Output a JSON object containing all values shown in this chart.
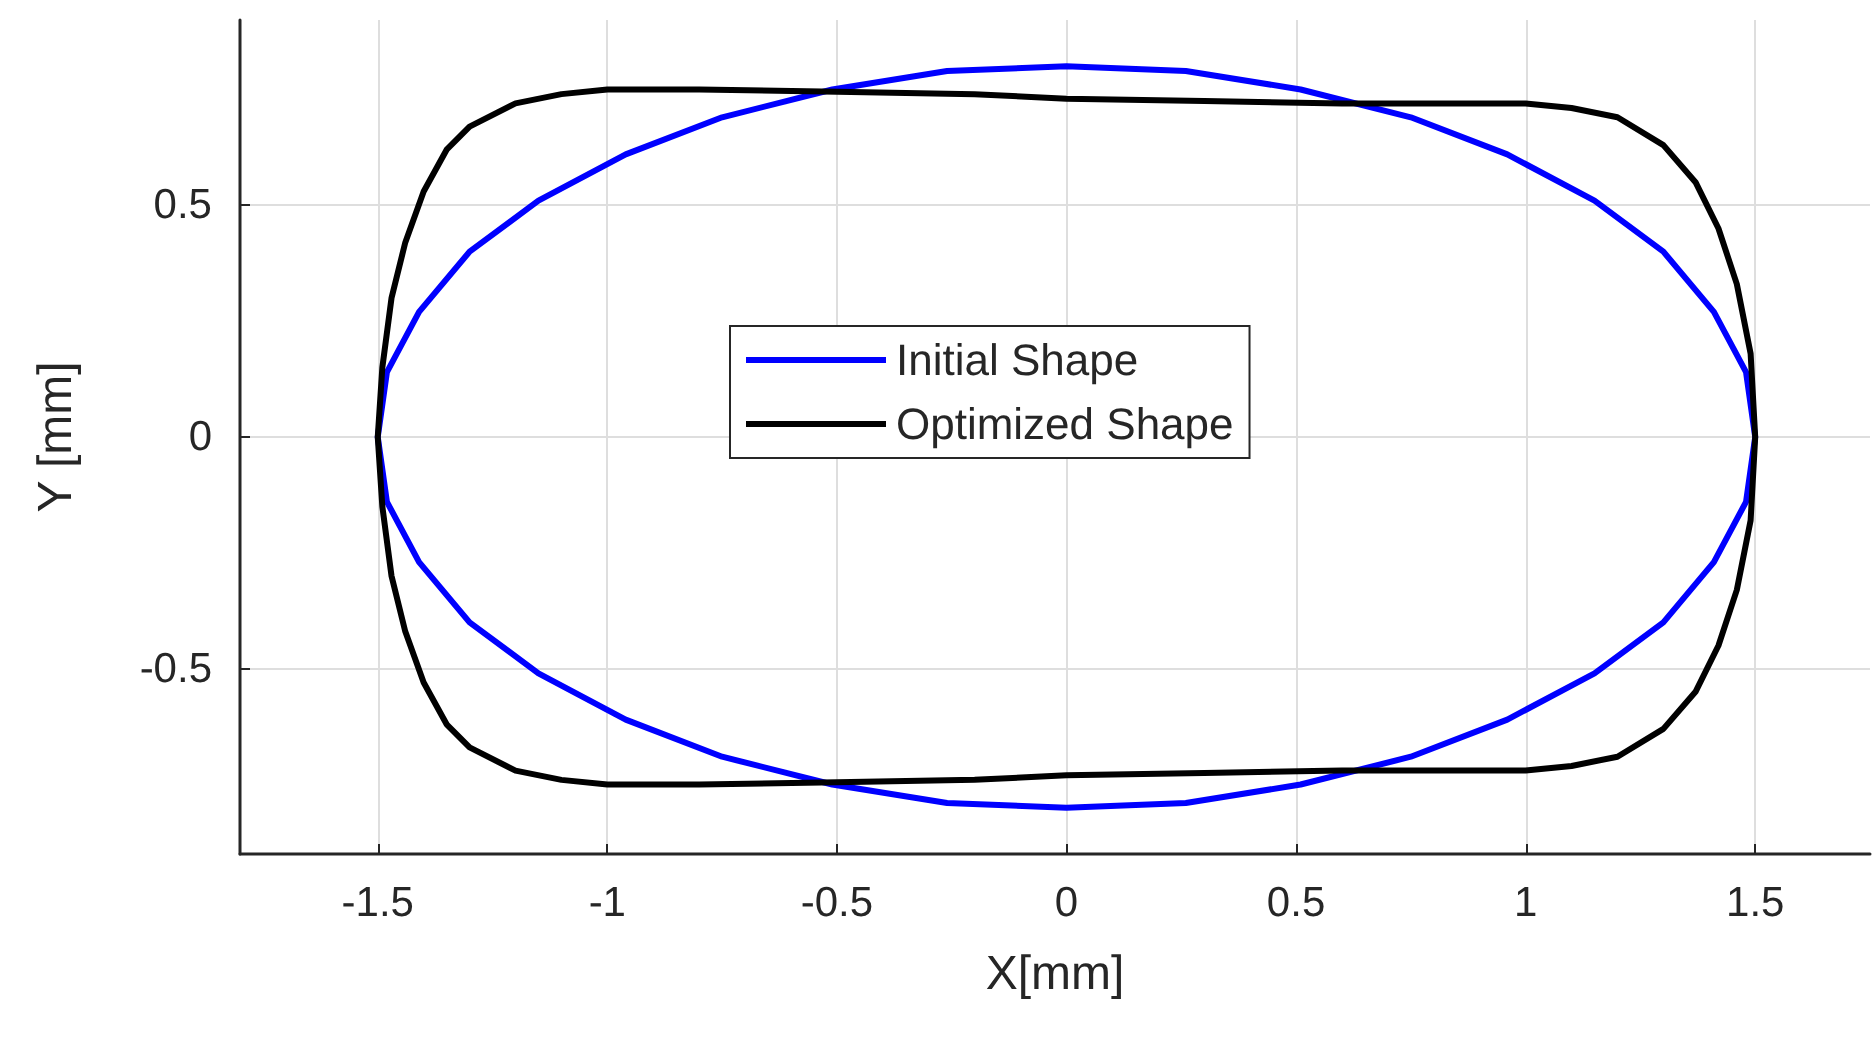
{
  "chart_data": {
    "type": "line",
    "xlabel": "X[mm]",
    "ylabel": "Y [mm]",
    "xlim": [
      -1.8,
      1.75
    ],
    "xticks": [
      -1.5,
      -1,
      -0.5,
      0,
      0.5,
      1,
      1.5
    ],
    "ylim": [
      -0.9,
      0.9
    ],
    "yticks": [
      -0.5,
      0,
      0.5
    ],
    "grid": true,
    "legend": "center",
    "marker": "none",
    "line_style": "solid",
    "series": [
      {
        "name": "Initial Shape",
        "color": "#0000ff",
        "x": [
          -1.5,
          -1.48,
          -1.41,
          -1.3,
          -1.15,
          -0.96,
          -0.75,
          -0.51,
          -0.26,
          0,
          0.26,
          0.51,
          0.75,
          0.96,
          1.15,
          1.3,
          1.41,
          1.48,
          1.5,
          1.48,
          1.41,
          1.3,
          1.15,
          0.96,
          0.75,
          0.51,
          0.26,
          0,
          -0.26,
          -0.51,
          -0.75,
          -0.96,
          -1.15,
          -1.3,
          -1.41,
          -1.48,
          -1.5,
          -1.48
        ],
        "values": [
          0,
          0.14,
          0.27,
          0.4,
          0.51,
          0.61,
          0.69,
          0.75,
          0.79,
          0.8,
          0.79,
          0.75,
          0.69,
          0.61,
          0.51,
          0.4,
          0.27,
          0.14,
          0,
          -0.14,
          -0.27,
          -0.4,
          -0.51,
          -0.61,
          -0.69,
          -0.75,
          -0.79,
          -0.8,
          -0.79,
          -0.75,
          -0.69,
          -0.61,
          -0.51,
          -0.4,
          -0.27,
          -0.14,
          0,
          0.14
        ]
      },
      {
        "name": "Optimized Shape",
        "color": "#000000",
        "x": [
          -1.5,
          -1.49,
          -1.47,
          -1.44,
          -1.4,
          -1.35,
          -1.3,
          -1.2,
          -1.1,
          -1,
          -0.8,
          -0.5,
          -0.2,
          0,
          0.3,
          0.6,
          0.9,
          1,
          1.1,
          1.2,
          1.3,
          1.37,
          1.42,
          1.46,
          1.49,
          1.5,
          1.49,
          1.46,
          1.42,
          1.37,
          1.3,
          1.2,
          1.1,
          1,
          0.9,
          0.6,
          0.3,
          0,
          -0.2,
          -0.5,
          -0.8,
          -1,
          -1.1,
          -1.2,
          -1.3,
          -1.35,
          -1.4,
          -1.44,
          -1.47,
          -1.49,
          -1.5,
          -1.49
        ],
        "values": [
          0,
          0.15,
          0.3,
          0.42,
          0.53,
          0.62,
          0.67,
          0.72,
          0.74,
          0.75,
          0.75,
          0.745,
          0.74,
          0.73,
          0.725,
          0.72,
          0.72,
          0.72,
          0.71,
          0.69,
          0.63,
          0.55,
          0.45,
          0.33,
          0.18,
          0,
          -0.18,
          -0.33,
          -0.45,
          -0.55,
          -0.63,
          -0.69,
          -0.71,
          -0.72,
          -0.72,
          -0.72,
          -0.725,
          -0.73,
          -0.74,
          -0.745,
          -0.75,
          -0.75,
          -0.74,
          -0.72,
          -0.67,
          -0.62,
          -0.53,
          -0.42,
          -0.3,
          -0.15,
          0,
          0.15
        ]
      }
    ]
  }
}
